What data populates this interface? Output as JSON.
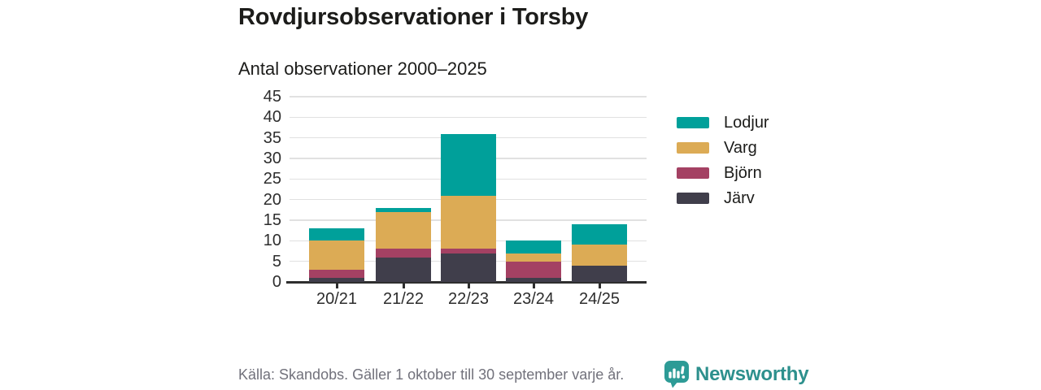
{
  "header": {
    "title": "Rovdjursobservationer i Torsby",
    "subtitle": "Antal observationer 2000–2025"
  },
  "chart_data": {
    "type": "bar",
    "stacked": true,
    "title": "Rovdjursobservationer i Torsby",
    "subtitle": "Antal observationer 2000–2025",
    "categories": [
      "20/21",
      "21/22",
      "22/23",
      "23/24",
      "24/25"
    ],
    "series": [
      {
        "name": "Järv",
        "color": "#403E4B",
        "values": [
          1,
          6,
          7,
          1,
          4
        ]
      },
      {
        "name": "Björn",
        "color": "#A44163",
        "values": [
          2,
          2,
          1,
          4,
          0
        ]
      },
      {
        "name": "Varg",
        "color": "#DCAB55",
        "values": [
          7,
          9,
          13,
          2,
          5
        ]
      },
      {
        "name": "Lodjur",
        "color": "#00A09A",
        "values": [
          3,
          1,
          15,
          3,
          5
        ]
      }
    ],
    "totals": [
      13,
      18,
      36,
      10,
      14
    ],
    "stack_order_bottom_to_top": [
      "Järv",
      "Björn",
      "Varg",
      "Lodjur"
    ],
    "legend_order": [
      "Lodjur",
      "Varg",
      "Björn",
      "Järv"
    ],
    "legend_position": "right",
    "xlabel": "",
    "ylabel": "",
    "ylim": [
      0,
      45
    ],
    "yticks": [
      0,
      5,
      10,
      15,
      20,
      25,
      30,
      35,
      40,
      45
    ],
    "grid": true
  },
  "footer": {
    "source": "Källa: Skandobs. Gäller 1 oktober till 30 september varje år.",
    "brand": "Newsworthy"
  },
  "colors": {
    "lodjur": "#00A09A",
    "varg": "#DCAB55",
    "bjorn": "#A44163",
    "jarv": "#403E4B",
    "gridline": "#e1e1e1",
    "axis": "#2e2e2e",
    "text": "#1c1c1a",
    "source_text": "#71717b",
    "brand_teal": "#2d908d"
  }
}
